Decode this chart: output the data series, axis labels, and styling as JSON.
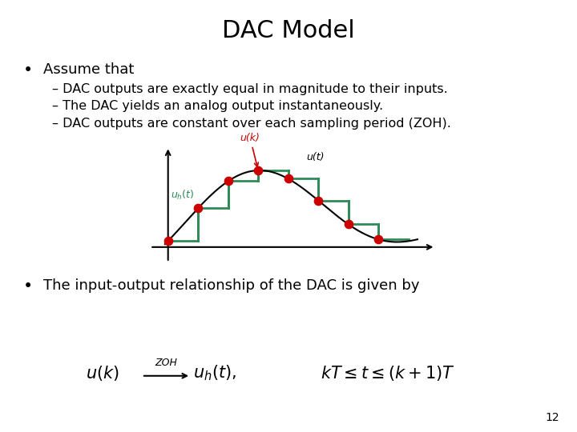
{
  "title": "DAC Model",
  "bullet1": "Assume that",
  "sub1": "DAC outputs are exactly equal in magnitude to their inputs.",
  "sub2": "The DAC yields an analog output instantaneously.",
  "sub3": "DAC outputs are constant over each sampling period (ZOH).",
  "bullet2": "The input-output relationship of the DAC is given by",
  "page_number": "12",
  "bg_color": "#ffffff",
  "text_color": "#000000",
  "zoh_color": "#2e8b57",
  "curve_color": "#000000",
  "dot_color": "#cc0000",
  "label_uk_color": "#cc0000",
  "label_ut_color": "#000000",
  "label_uht_color": "#2e8b57"
}
